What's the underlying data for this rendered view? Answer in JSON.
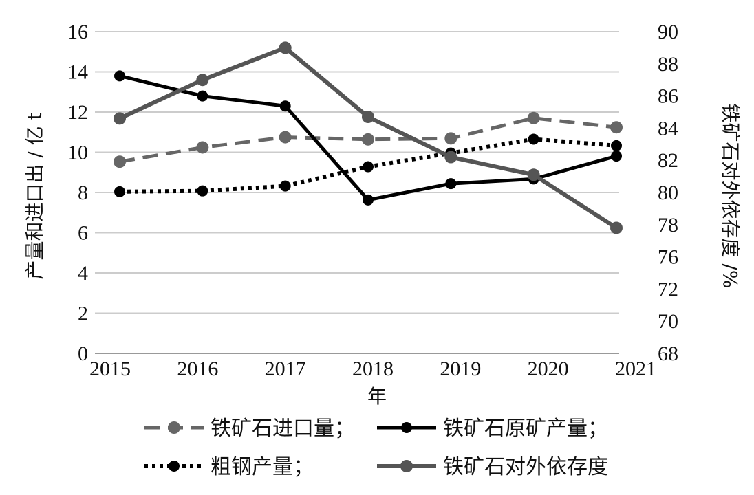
{
  "chart_data": {
    "type": "line",
    "xlabel": "年",
    "y_left_label": "产量和进口出 / 亿 t",
    "y_right_label": "铁矿石对外依存度 /%",
    "x_ticks": [
      "2015",
      "2016",
      "2017",
      "2018",
      "2019",
      "2020",
      "2021"
    ],
    "y_left_ticks": [
      "0",
      "2",
      "4",
      "6",
      "8",
      "10",
      "12",
      "14",
      "16"
    ],
    "y_right_ticks": [
      "68",
      "70",
      "72",
      "76",
      "78",
      "80",
      "82",
      "84",
      "86",
      "88",
      "90"
    ],
    "ylim_left": [
      0,
      16
    ],
    "ylim_right": [
      68,
      90
    ],
    "grid": true,
    "legend_position": "bottom",
    "series": [
      {
        "name": "铁矿石进口量；",
        "axis": "left",
        "style": "dashed",
        "color": "#666666",
        "x": [
          "2015",
          "2016",
          "2017",
          "2018",
          "2019",
          "2020",
          "2021"
        ],
        "values": [
          9.53,
          10.24,
          10.75,
          10.64,
          10.69,
          11.7,
          11.24
        ]
      },
      {
        "name": "铁矿石原矿产量；",
        "axis": "left",
        "style": "solid",
        "color": "#000000",
        "x": [
          "2015",
          "2016",
          "2017",
          "2018",
          "2019",
          "2020",
          "2021"
        ],
        "values": [
          13.8,
          12.8,
          12.3,
          7.63,
          8.44,
          8.67,
          9.81
        ]
      },
      {
        "name": "粗钢产量；",
        "axis": "left",
        "style": "dotted",
        "color": "#000000",
        "x": [
          "2015",
          "2016",
          "2017",
          "2018",
          "2019",
          "2020",
          "2021"
        ],
        "values": [
          8.04,
          8.08,
          8.32,
          9.28,
          9.96,
          10.65,
          10.33
        ]
      },
      {
        "name": "铁矿石对外依存度",
        "axis": "right",
        "style": "solid-thick",
        "color": "#555555",
        "x": [
          "2015",
          "2016",
          "2017",
          "2018",
          "2019",
          "2020",
          "2021"
        ],
        "values": [
          84.6,
          87.0,
          89.0,
          84.7,
          82.2,
          81.1,
          77.8
        ]
      }
    ]
  }
}
